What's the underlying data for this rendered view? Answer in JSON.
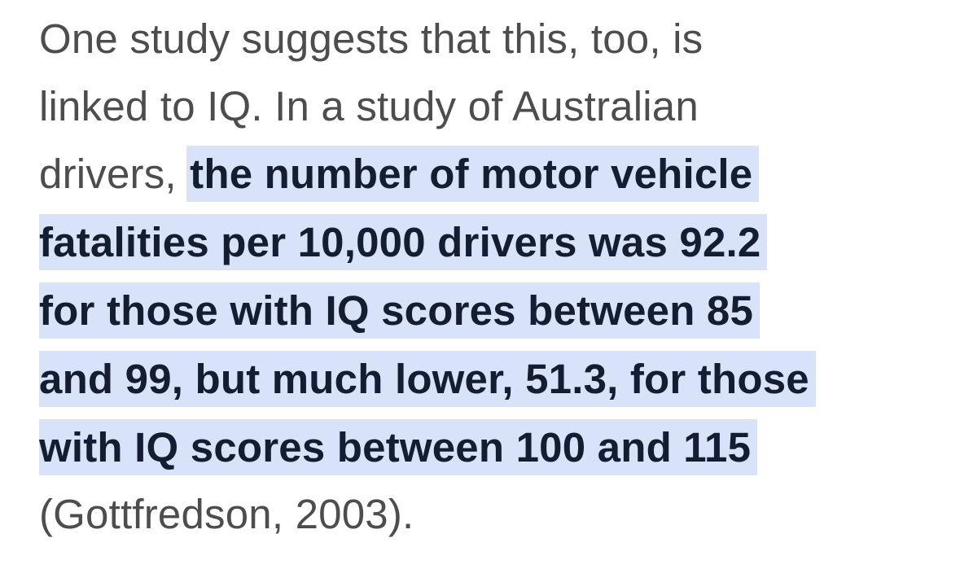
{
  "paragraph": {
    "plain_lines": [
      "One study suggests that this, too, is",
      "linked to IQ. In a study of Australian",
      "drivers, "
    ],
    "highlighted_lines": [
      "the number of motor vehicle",
      "fatalities per 10,000 drivers was 92.2",
      "for those with IQ scores between 85",
      "and 99, but much lower, 51.3, for those",
      "with IQ scores between 100 and 115"
    ],
    "closing_line": "(Gottfredson, 2003)."
  },
  "colors": {
    "text": "#4d4d4d",
    "highlight_background": "#d8e2f9",
    "highlight_text": "#151d33"
  }
}
